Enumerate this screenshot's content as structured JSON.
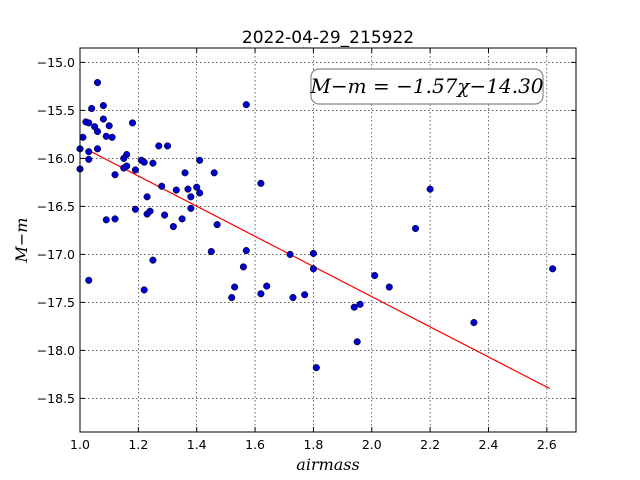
{
  "chart_data": {
    "type": "scatter",
    "title": "2022-04-29_215922",
    "xlabel": "airmass",
    "ylabel": "M−m",
    "xlim": [
      1.0,
      2.7
    ],
    "ylim": [
      -18.85,
      -14.85
    ],
    "y_inverted": true,
    "grid": true,
    "x_ticks": [
      1.0,
      1.2,
      1.4,
      1.6,
      1.8,
      2.0,
      2.2,
      2.4,
      2.6
    ],
    "x_tick_labels": [
      "1.0",
      "1.2",
      "1.4",
      "1.6",
      "1.8",
      "2.0",
      "2.2",
      "2.4",
      "2.6"
    ],
    "y_ticks": [
      -15.0,
      -15.5,
      -16.0,
      -16.5,
      -17.0,
      -17.5,
      -18.0,
      -18.5
    ],
    "y_tick_labels": [
      "−15.0",
      "−15.5",
      "−16.0",
      "−16.5",
      "−17.0",
      "−17.5",
      "−18.0",
      "−18.5"
    ],
    "annotation": "M−m = −1.57χ−14.30",
    "annotation_placement": "top-right",
    "points_color": "#0000cc",
    "fit_color": "#ff0000",
    "fit_line": {
      "slope": -1.57,
      "intercept": -14.3,
      "x_range": [
        1.03,
        2.61
      ]
    },
    "points": [
      [
        1.0,
        -15.9
      ],
      [
        1.0,
        -16.11
      ],
      [
        1.01,
        -15.78
      ],
      [
        1.02,
        -15.62
      ],
      [
        1.03,
        -15.63
      ],
      [
        1.03,
        -15.93
      ],
      [
        1.03,
        -16.01
      ],
      [
        1.03,
        -17.27
      ],
      [
        1.04,
        -15.48
      ],
      [
        1.05,
        -15.67
      ],
      [
        1.06,
        -15.72
      ],
      [
        1.06,
        -15.9
      ],
      [
        1.06,
        -15.21
      ],
      [
        1.08,
        -15.45
      ],
      [
        1.08,
        -15.59
      ],
      [
        1.09,
        -15.77
      ],
      [
        1.09,
        -16.64
      ],
      [
        1.1,
        -15.66
      ],
      [
        1.11,
        -15.78
      ],
      [
        1.12,
        -16.63
      ],
      [
        1.12,
        -16.17
      ],
      [
        1.15,
        -16.0
      ],
      [
        1.15,
        -16.1
      ],
      [
        1.16,
        -16.08
      ],
      [
        1.16,
        -15.96
      ],
      [
        1.18,
        -15.63
      ],
      [
        1.19,
        -16.12
      ],
      [
        1.19,
        -16.53
      ],
      [
        1.21,
        -16.02
      ],
      [
        1.22,
        -16.04
      ],
      [
        1.22,
        -17.37
      ],
      [
        1.23,
        -16.4
      ],
      [
        1.23,
        -16.58
      ],
      [
        1.24,
        -16.55
      ],
      [
        1.25,
        -16.05
      ],
      [
        1.25,
        -17.06
      ],
      [
        1.27,
        -15.87
      ],
      [
        1.28,
        -16.29
      ],
      [
        1.29,
        -16.59
      ],
      [
        1.3,
        -15.87
      ],
      [
        1.32,
        -16.71
      ],
      [
        1.33,
        -16.33
      ],
      [
        1.35,
        -16.63
      ],
      [
        1.36,
        -16.15
      ],
      [
        1.37,
        -16.32
      ],
      [
        1.38,
        -16.4
      ],
      [
        1.38,
        -16.52
      ],
      [
        1.4,
        -16.3
      ],
      [
        1.41,
        -16.36
      ],
      [
        1.41,
        -16.02
      ],
      [
        1.45,
        -16.97
      ],
      [
        1.46,
        -16.15
      ],
      [
        1.47,
        -16.69
      ],
      [
        1.52,
        -17.45
      ],
      [
        1.53,
        -17.34
      ],
      [
        1.56,
        -17.13
      ],
      [
        1.57,
        -16.96
      ],
      [
        1.57,
        -15.44
      ],
      [
        1.62,
        -16.26
      ],
      [
        1.62,
        -17.41
      ],
      [
        1.64,
        -17.33
      ],
      [
        1.72,
        -17.0
      ],
      [
        1.73,
        -17.45
      ],
      [
        1.77,
        -17.42
      ],
      [
        1.8,
        -16.99
      ],
      [
        1.8,
        -17.15
      ],
      [
        1.81,
        -18.18
      ],
      [
        1.94,
        -17.55
      ],
      [
        1.95,
        -17.91
      ],
      [
        1.96,
        -17.52
      ],
      [
        2.01,
        -17.22
      ],
      [
        2.06,
        -17.34
      ],
      [
        2.15,
        -16.73
      ],
      [
        2.2,
        -16.32
      ],
      [
        2.35,
        -17.71
      ],
      [
        2.62,
        -17.15
      ]
    ]
  }
}
